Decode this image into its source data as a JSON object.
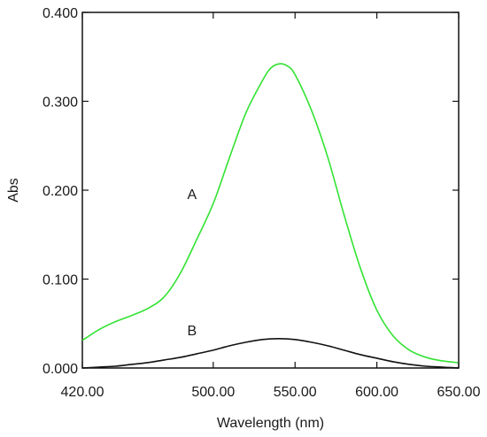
{
  "chart_data": {
    "type": "line",
    "xlabel": "Wavelength (nm)",
    "ylabel": "Abs",
    "xlim": [
      420,
      650
    ],
    "ylim": [
      0,
      0.4
    ],
    "x_ticks": [
      420,
      500,
      550,
      600,
      650
    ],
    "x_tick_labels": [
      "420.00",
      "500.00",
      "550.00",
      "600.00",
      "650.00"
    ],
    "y_ticks": [
      0,
      0.1,
      0.2,
      0.3,
      0.4
    ],
    "y_tick_labels": [
      "0.000",
      "0.100",
      "0.200",
      "0.300",
      "0.400"
    ],
    "grid": false,
    "series": [
      {
        "name": "A",
        "color": "#33e233",
        "x": [
          420,
          430,
          440,
          450,
          460,
          470,
          480,
          490,
          500,
          510,
          520,
          530,
          535,
          540,
          545,
          550,
          560,
          570,
          580,
          590,
          600,
          610,
          620,
          630,
          640,
          650
        ],
        "y": [
          0.031,
          0.043,
          0.052,
          0.059,
          0.067,
          0.08,
          0.107,
          0.145,
          0.185,
          0.237,
          0.287,
          0.323,
          0.337,
          0.342,
          0.34,
          0.33,
          0.29,
          0.237,
          0.172,
          0.112,
          0.065,
          0.036,
          0.02,
          0.012,
          0.008,
          0.006
        ]
      },
      {
        "name": "B",
        "color": "#111111",
        "x": [
          420,
          430,
          440,
          450,
          460,
          470,
          480,
          490,
          500,
          510,
          520,
          530,
          540,
          550,
          560,
          570,
          580,
          590,
          600,
          610,
          620,
          630,
          640,
          650
        ],
        "y": [
          0.0,
          0.001,
          0.002,
          0.004,
          0.006,
          0.009,
          0.012,
          0.016,
          0.02,
          0.025,
          0.029,
          0.032,
          0.033,
          0.032,
          0.029,
          0.025,
          0.02,
          0.015,
          0.011,
          0.007,
          0.004,
          0.002,
          0.001,
          0.0
        ]
      }
    ],
    "annotations": [
      {
        "text": "A",
        "x": 487,
        "y": 0.19
      },
      {
        "text": "B",
        "x": 487,
        "y": 0.037
      }
    ]
  }
}
